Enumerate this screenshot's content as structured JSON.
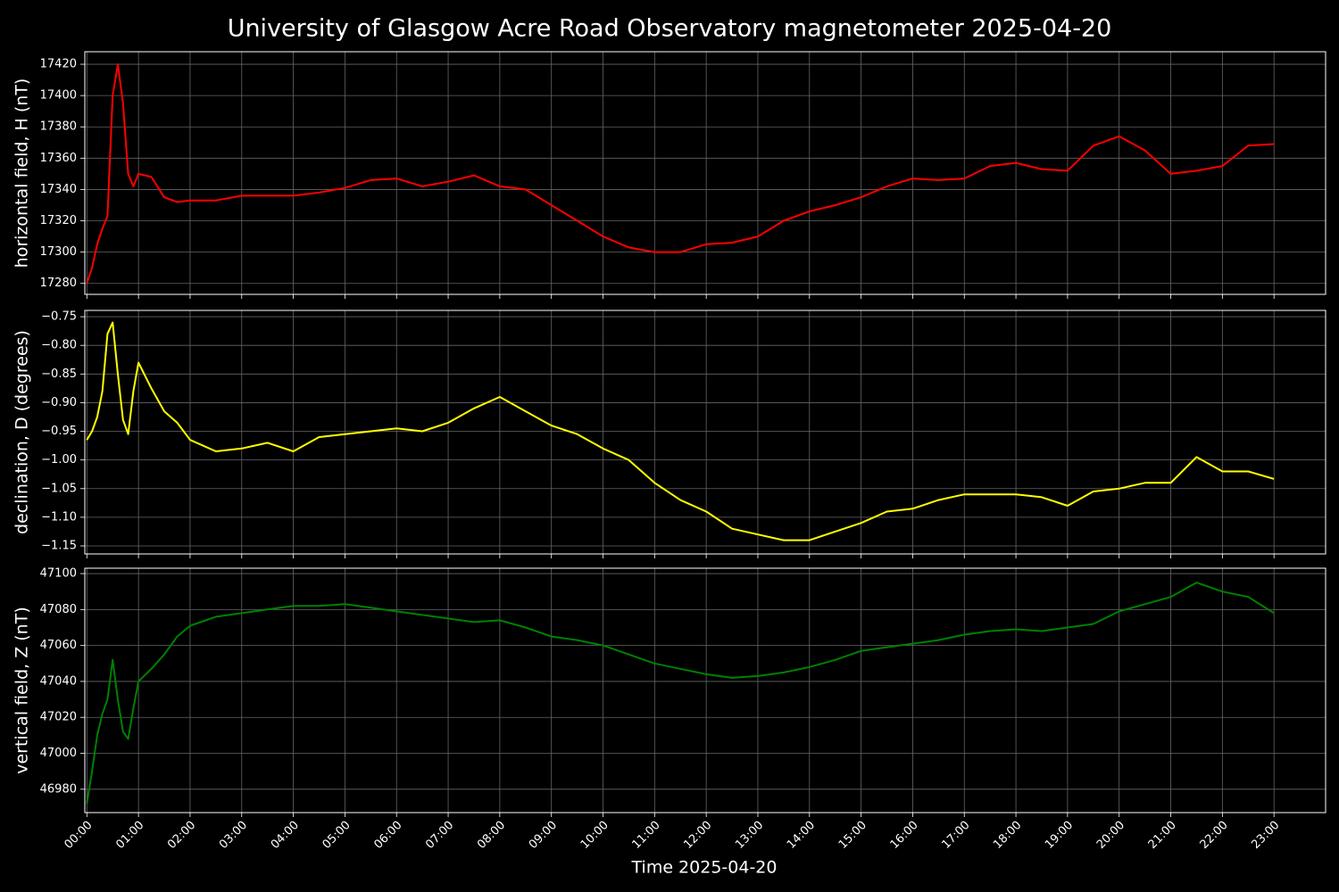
{
  "title": "University of Glasgow Acre Road Observatory magnetometer 2025-04-20",
  "chart_data": [
    {
      "type": "line",
      "ylabel": "horizontal field, H (nT)",
      "color": "#ff0000",
      "grid": true,
      "x": [
        0,
        0.1,
        0.2,
        0.3,
        0.4,
        0.5,
        0.6,
        0.7,
        0.8,
        0.9,
        1.0,
        1.25,
        1.5,
        1.75,
        2,
        2.5,
        3,
        3.5,
        4,
        4.5,
        5,
        5.5,
        6,
        6.5,
        7,
        7.5,
        8,
        8.5,
        9,
        9.5,
        10,
        10.5,
        11,
        11.5,
        12,
        12.5,
        13,
        13.5,
        14,
        14.5,
        15,
        15.5,
        16,
        16.5,
        17,
        17.5,
        18,
        18.5,
        19,
        19.5,
        20,
        20.5,
        21,
        21.5,
        22,
        22.5,
        23
      ],
      "values": [
        17280,
        17290,
        17305,
        17315,
        17323,
        17400,
        17420,
        17395,
        17350,
        17342,
        17350,
        17348,
        17335,
        17332,
        17333,
        17333,
        17336,
        17336,
        17336,
        17338,
        17341,
        17346,
        17347,
        17342,
        17345,
        17349,
        17342,
        17340,
        17330,
        17320,
        17310,
        17303,
        17300,
        17300,
        17305,
        17306,
        17310,
        17320,
        17326,
        17330,
        17335,
        17342,
        17347,
        17346,
        17347,
        17355,
        17357,
        17353,
        17352,
        17368,
        17374,
        17365,
        17350,
        17352,
        17355,
        17368,
        17369
      ],
      "xlim": [
        -0.04,
        24.0
      ],
      "xticks": [
        0,
        1,
        2,
        3,
        4,
        5,
        6,
        7,
        8,
        9,
        10,
        11,
        12,
        13,
        14,
        15,
        16,
        17,
        18,
        19,
        20,
        21,
        22,
        23
      ],
      "ylim": [
        17273,
        17428
      ],
      "yticks": [
        17280,
        17300,
        17320,
        17340,
        17360,
        17380,
        17400,
        17420
      ]
    },
    {
      "type": "line",
      "ylabel": "declination, D (degrees)",
      "color": "#ffff00",
      "grid": true,
      "x": [
        0,
        0.1,
        0.2,
        0.3,
        0.4,
        0.5,
        0.6,
        0.7,
        0.8,
        0.9,
        1.0,
        1.25,
        1.5,
        1.75,
        2,
        2.5,
        3,
        3.5,
        4,
        4.5,
        5,
        5.5,
        6,
        6.5,
        7,
        7.5,
        8,
        8.5,
        9,
        9.5,
        10,
        10.5,
        11,
        11.5,
        12,
        12.5,
        13,
        13.5,
        14,
        14.5,
        15,
        15.5,
        16,
        16.5,
        17,
        17.5,
        18,
        18.5,
        19,
        19.5,
        20,
        20.5,
        21,
        21.5,
        22,
        22.5,
        23
      ],
      "values": [
        -0.965,
        -0.95,
        -0.925,
        -0.88,
        -0.78,
        -0.76,
        -0.85,
        -0.93,
        -0.955,
        -0.88,
        -0.83,
        -0.875,
        -0.915,
        -0.935,
        -0.965,
        -0.985,
        -0.98,
        -0.97,
        -0.985,
        -0.96,
        -0.955,
        -0.95,
        -0.945,
        -0.95,
        -0.935,
        -0.91,
        -0.89,
        -0.915,
        -0.94,
        -0.955,
        -0.98,
        -1.0,
        -1.04,
        -1.07,
        -1.09,
        -1.12,
        -1.13,
        -1.14,
        -1.14,
        -1.125,
        -1.11,
        -1.09,
        -1.085,
        -1.07,
        -1.06,
        -1.06,
        -1.06,
        -1.065,
        -1.08,
        -1.055,
        -1.05,
        -1.04,
        -1.04,
        -0.995,
        -1.02,
        -1.02,
        -1.033
      ],
      "xlim": [
        -0.04,
        24.0
      ],
      "xticks": [
        0,
        1,
        2,
        3,
        4,
        5,
        6,
        7,
        8,
        9,
        10,
        11,
        12,
        13,
        14,
        15,
        16,
        17,
        18,
        19,
        20,
        21,
        22,
        23
      ],
      "ylim": [
        -1.164,
        -0.739
      ],
      "yticks": [
        {
          "value": -1.15,
          "label": "−1.15"
        },
        {
          "value": -1.1,
          "label": "−1.10"
        },
        {
          "value": -1.05,
          "label": "−1.05"
        },
        {
          "value": -1.0,
          "label": "−1.00"
        },
        {
          "value": -0.95,
          "label": "−0.95"
        },
        {
          "value": -0.9,
          "label": "−0.90"
        },
        {
          "value": -0.85,
          "label": "−0.85"
        },
        {
          "value": -0.8,
          "label": "−0.80"
        },
        {
          "value": -0.75,
          "label": "−0.75"
        }
      ]
    },
    {
      "type": "line",
      "ylabel": "vertical field, Z (nT)",
      "xlabel": "Time 2025-04-20",
      "color": "#008000",
      "grid": true,
      "x": [
        0,
        0.1,
        0.2,
        0.3,
        0.4,
        0.5,
        0.6,
        0.7,
        0.8,
        0.9,
        1.0,
        1.25,
        1.5,
        1.75,
        2,
        2.5,
        3,
        3.5,
        4,
        4.5,
        5,
        5.5,
        6,
        6.5,
        7,
        7.5,
        8,
        8.5,
        9,
        9.5,
        10,
        10.5,
        11,
        11.5,
        12,
        12.5,
        13,
        13.5,
        14,
        14.5,
        15,
        15.5,
        16,
        16.5,
        17,
        17.5,
        18,
        18.5,
        19,
        19.5,
        20,
        20.5,
        21,
        21.5,
        22,
        22.5,
        23
      ],
      "values": [
        46972,
        46990,
        47010,
        47022,
        47030,
        47052,
        47030,
        47012,
        47008,
        47025,
        47040,
        47047,
        47055,
        47065,
        47071,
        47076,
        47078,
        47080,
        47082,
        47082,
        47083,
        47081,
        47079,
        47077,
        47075,
        47073,
        47074,
        47070,
        47065,
        47063,
        47060,
        47055,
        47050,
        47047,
        47044,
        47042,
        47043,
        47045,
        47048,
        47052,
        47057,
        47059,
        47061,
        47063,
        47066,
        47068,
        47069,
        47068,
        47070,
        47072,
        47079,
        47083,
        47087,
        47095,
        47090,
        47087,
        47078
      ],
      "xlim": [
        -0.04,
        24.0
      ],
      "xticks": [
        {
          "value": 0,
          "label": "00:00"
        },
        {
          "value": 1,
          "label": "01:00"
        },
        {
          "value": 2,
          "label": "02:00"
        },
        {
          "value": 3,
          "label": "03:00"
        },
        {
          "value": 4,
          "label": "04:00"
        },
        {
          "value": 5,
          "label": "05:00"
        },
        {
          "value": 6,
          "label": "06:00"
        },
        {
          "value": 7,
          "label": "07:00"
        },
        {
          "value": 8,
          "label": "08:00"
        },
        {
          "value": 9,
          "label": "09:00"
        },
        {
          "value": 10,
          "label": "10:00"
        },
        {
          "value": 11,
          "label": "11:00"
        },
        {
          "value": 12,
          "label": "12:00"
        },
        {
          "value": 13,
          "label": "13:00"
        },
        {
          "value": 14,
          "label": "14:00"
        },
        {
          "value": 15,
          "label": "15:00"
        },
        {
          "value": 16,
          "label": "16:00"
        },
        {
          "value": 17,
          "label": "17:00"
        },
        {
          "value": 18,
          "label": "18:00"
        },
        {
          "value": 19,
          "label": "19:00"
        },
        {
          "value": 20,
          "label": "20:00"
        },
        {
          "value": 21,
          "label": "21:00"
        },
        {
          "value": 22,
          "label": "22:00"
        },
        {
          "value": 23,
          "label": "23:00"
        }
      ],
      "ylim": [
        46967,
        47103
      ],
      "yticks": [
        46980,
        47000,
        47020,
        47040,
        47060,
        47080,
        47100
      ]
    }
  ]
}
